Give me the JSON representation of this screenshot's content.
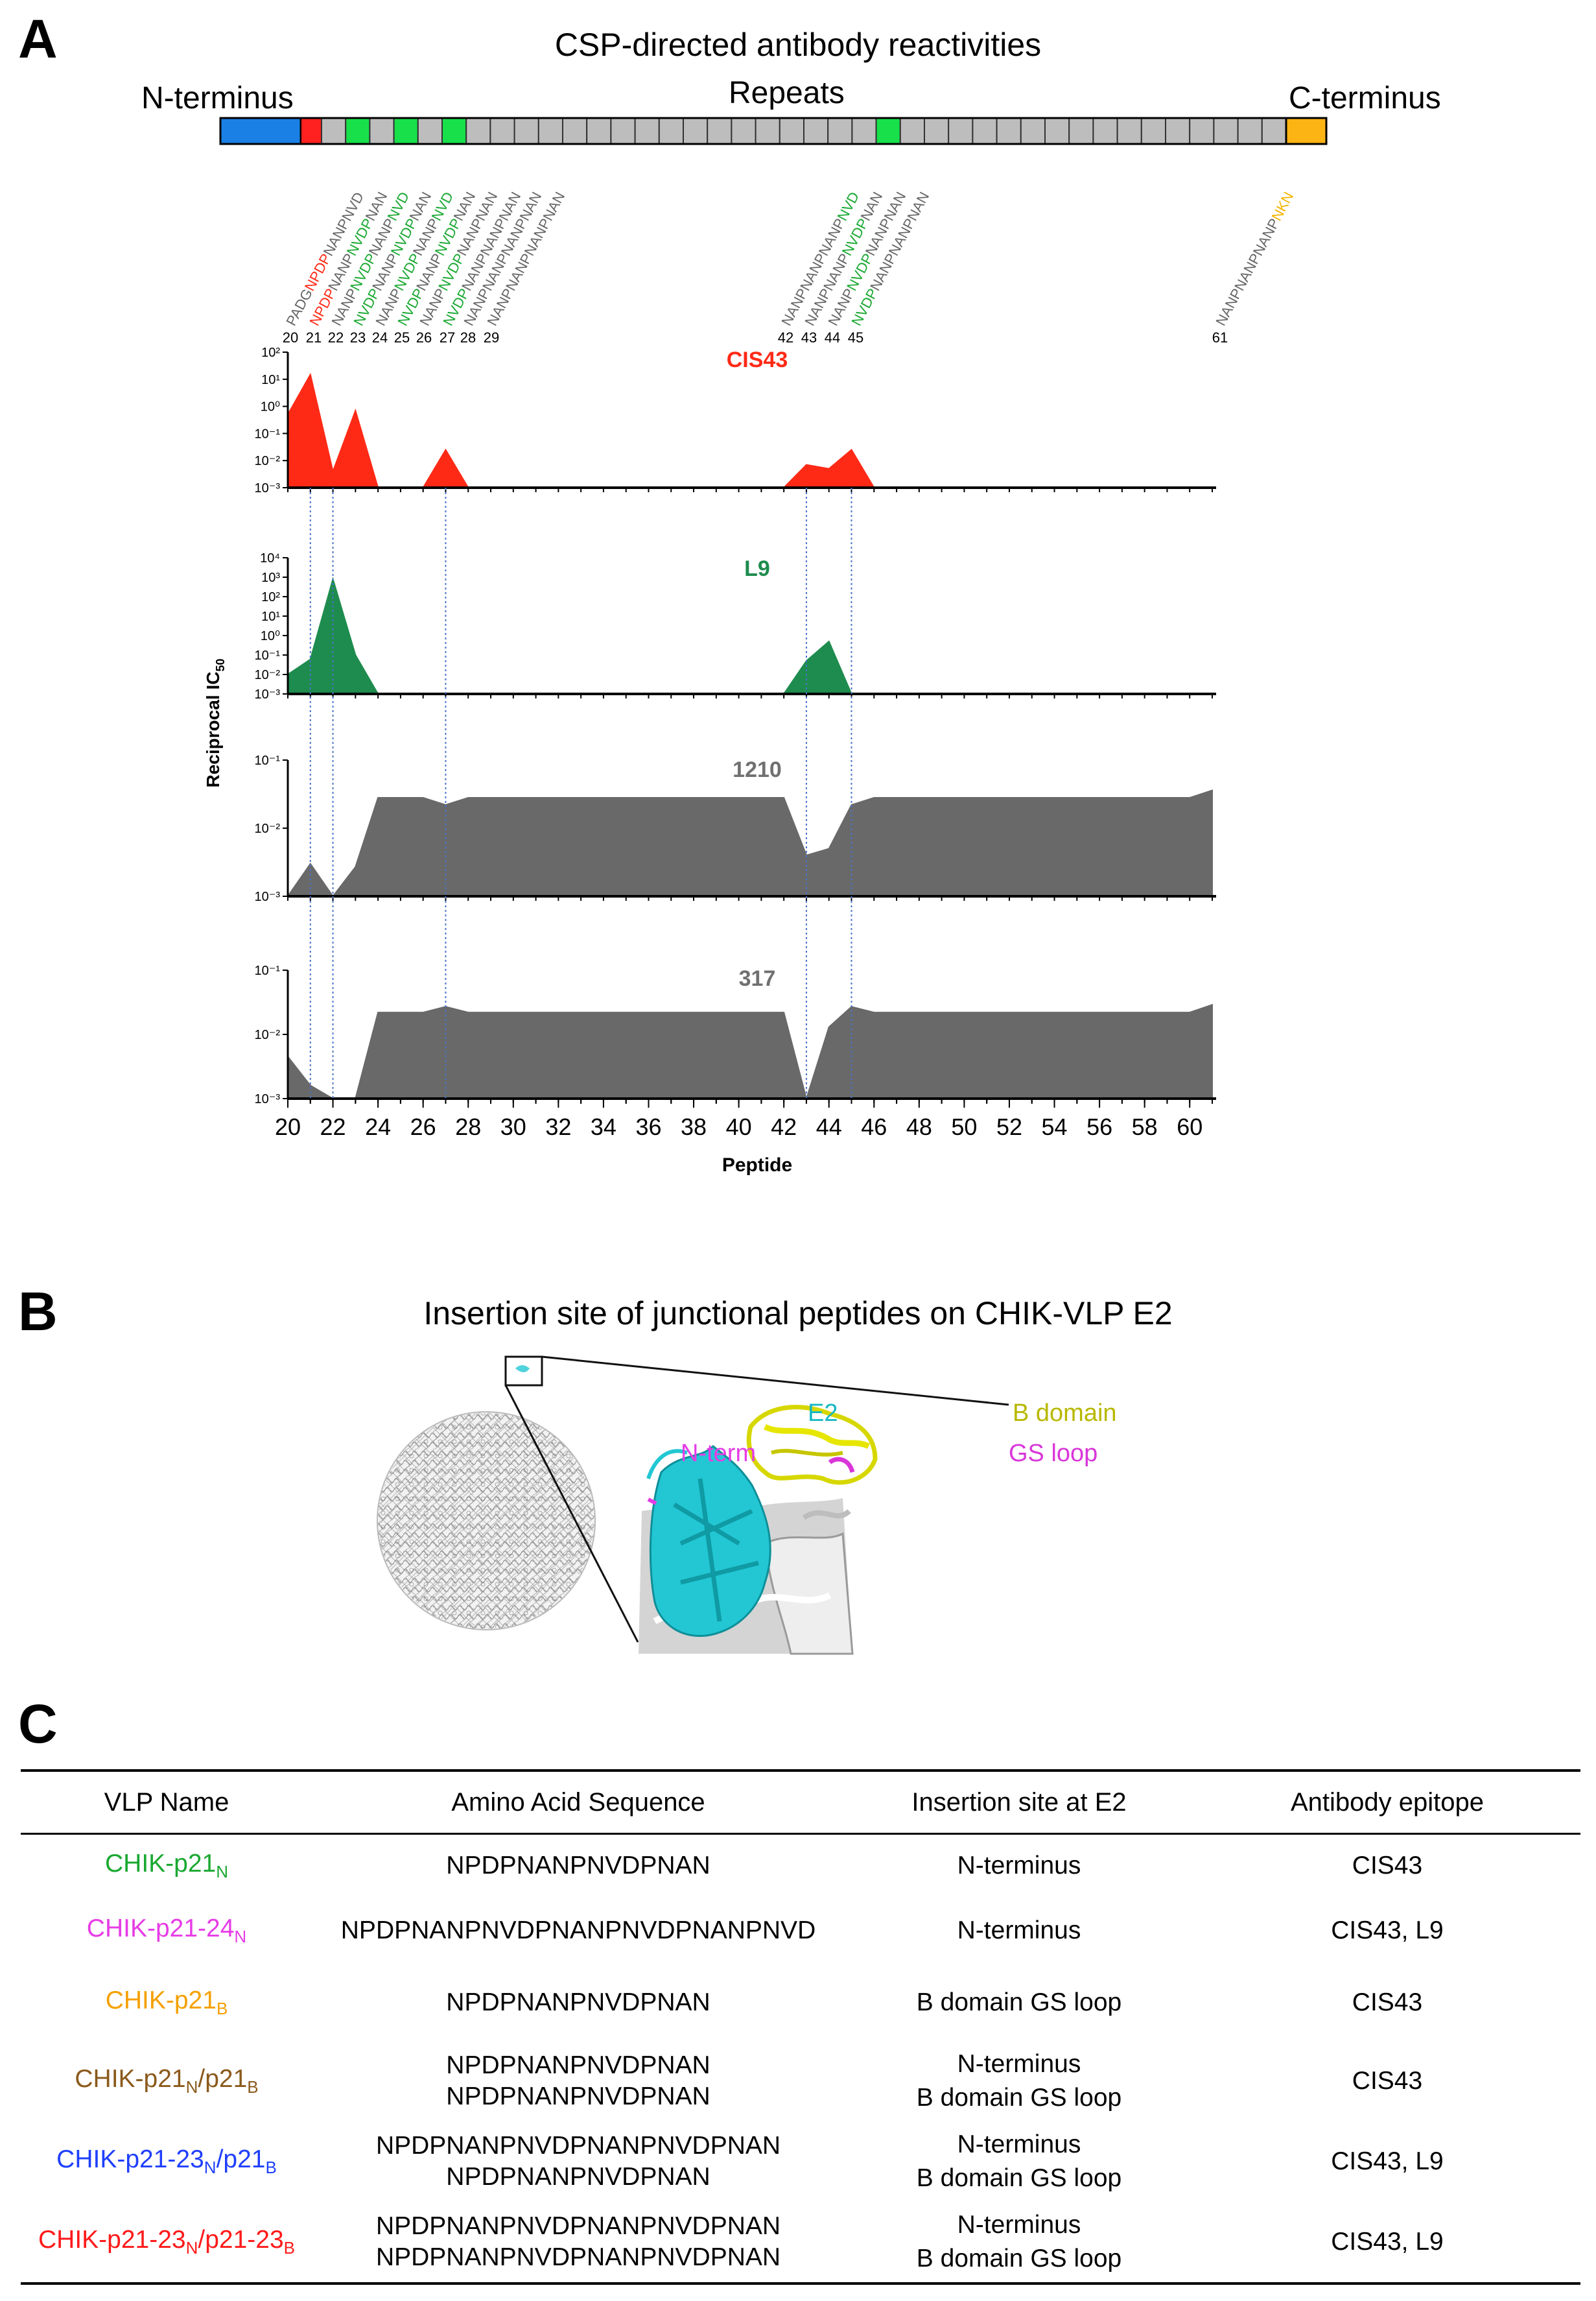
{
  "panelA": {
    "letter": "A",
    "title": "CSP-directed antibody reactivities",
    "n_terminus": "N-terminus",
    "repeats": "Repeats",
    "c_terminus": "C-terminus",
    "peptide_numbers": [
      "20",
      "21",
      "22",
      "23",
      "24",
      "25",
      "26",
      "27",
      "28",
      "29",
      "42",
      "43",
      "44",
      "45",
      "61"
    ],
    "peptides": [
      {
        "num": "20",
        "segments": [
          {
            "t": "PADG",
            "c": "gray"
          },
          {
            "t": "NPDP",
            "c": "red"
          },
          {
            "t": "NANPNVD",
            "c": "gray"
          }
        ]
      },
      {
        "num": "21",
        "segments": [
          {
            "t": "NPDP",
            "c": "red"
          },
          {
            "t": "NANP",
            "c": "gray"
          },
          {
            "t": "NVDP",
            "c": "green"
          },
          {
            "t": "NAN",
            "c": "gray"
          }
        ]
      },
      {
        "num": "22",
        "segments": [
          {
            "t": "NANP",
            "c": "gray"
          },
          {
            "t": "NVDP",
            "c": "green"
          },
          {
            "t": "NANP",
            "c": "gray"
          },
          {
            "t": "NVD",
            "c": "green"
          }
        ]
      },
      {
        "num": "23",
        "segments": [
          {
            "t": "NVDP",
            "c": "green"
          },
          {
            "t": "NANP",
            "c": "gray"
          },
          {
            "t": "NVDP",
            "c": "green"
          },
          {
            "t": "NAN",
            "c": "gray"
          }
        ]
      },
      {
        "num": "24",
        "segments": [
          {
            "t": "NANP",
            "c": "gray"
          },
          {
            "t": "NVDP",
            "c": "green"
          },
          {
            "t": "NANP",
            "c": "gray"
          },
          {
            "t": "NVD",
            "c": "green"
          }
        ]
      },
      {
        "num": "25",
        "segments": [
          {
            "t": "NVDP",
            "c": "green"
          },
          {
            "t": "NANP",
            "c": "gray"
          },
          {
            "t": "NVDP",
            "c": "green"
          },
          {
            "t": "NAN",
            "c": "gray"
          }
        ]
      },
      {
        "num": "26",
        "segments": [
          {
            "t": "NANP",
            "c": "gray"
          },
          {
            "t": "NVDP",
            "c": "green"
          },
          {
            "t": "NANPNAN",
            "c": "gray"
          }
        ]
      },
      {
        "num": "27",
        "segments": [
          {
            "t": "NVDP",
            "c": "green"
          },
          {
            "t": "NANPNANPNAN",
            "c": "gray"
          }
        ]
      },
      {
        "num": "28",
        "segments": [
          {
            "t": "NANPNANPNANPNAN",
            "c": "gray"
          }
        ]
      },
      {
        "num": "29",
        "segments": [
          {
            "t": "NANPNANPNANPNAN",
            "c": "gray"
          }
        ]
      },
      {
        "num": "42",
        "segments": [
          {
            "t": "NANPNANPNANP",
            "c": "gray"
          },
          {
            "t": "NVD",
            "c": "green"
          }
        ]
      },
      {
        "num": "43",
        "segments": [
          {
            "t": "NANPNANP",
            "c": "gray"
          },
          {
            "t": "NVDP",
            "c": "green"
          },
          {
            "t": "NAN",
            "c": "gray"
          }
        ]
      },
      {
        "num": "44",
        "segments": [
          {
            "t": "NANP",
            "c": "gray"
          },
          {
            "t": "NVDP",
            "c": "green"
          },
          {
            "t": "NANPNAN",
            "c": "gray"
          }
        ]
      },
      {
        "num": "45",
        "segments": [
          {
            "t": "NVDP",
            "c": "green"
          },
          {
            "t": "NANPNANPNAN",
            "c": "gray"
          }
        ]
      },
      {
        "num": "61",
        "segments": [
          {
            "t": "NANPNANPNANP",
            "c": "gray"
          },
          {
            "t": "NKN",
            "c": "orange"
          }
        ]
      }
    ],
    "colors": {
      "red": "#ff2a16",
      "green": "#1aa832",
      "orange": "#f5b400",
      "gray": "#666666",
      "nterm": "#1a80e6",
      "cterm": "#fbb413",
      "segment_green": "#17e04a",
      "segment_red": "#ff2020",
      "segment_gray": "#bdbdbd",
      "area_red": "#ff2a16",
      "area_green": "#1e8c4e",
      "area_gray": "#696969"
    },
    "y_axis_label": "Reciprocal IC",
    "y_axis_label_sub": "50",
    "x_axis_label": "Peptide",
    "x_ticks": [
      "20",
      "22",
      "24",
      "26",
      "28",
      "30",
      "32",
      "34",
      "36",
      "38",
      "40",
      "42",
      "44",
      "46",
      "48",
      "50",
      "52",
      "54",
      "56",
      "58",
      "60"
    ]
  },
  "chart_data": [
    {
      "type": "area",
      "title": "CIS43",
      "xlabel": "Peptide",
      "ylabel": "Reciprocal IC50",
      "yscale": "log",
      "ylim": [
        0.001,
        100
      ],
      "y_ticks": [
        "10²",
        "10¹",
        "10⁰",
        "10⁻¹",
        "10⁻²",
        "10⁻³"
      ],
      "x": [
        20,
        21,
        22,
        23,
        24,
        25,
        26,
        27,
        28,
        29,
        30,
        31,
        32,
        33,
        34,
        35,
        36,
        37,
        38,
        39,
        40,
        41,
        42,
        43,
        44,
        45,
        46,
        47,
        48,
        49,
        50,
        51,
        52,
        53,
        54,
        55,
        56,
        57,
        58,
        59,
        60,
        61
      ],
      "values": [
        0.5,
        15,
        0.004,
        0.7,
        0.001,
        0.001,
        0.001,
        0.025,
        0.001,
        0.001,
        0.001,
        0.001,
        0.001,
        0.001,
        0.001,
        0.001,
        0.001,
        0.001,
        0.001,
        0.001,
        0.001,
        0.001,
        0.001,
        0.007,
        0.005,
        0.025,
        0.001,
        0.001,
        0.001,
        0.001,
        0.001,
        0.001,
        0.001,
        0.001,
        0.001,
        0.001,
        0.001,
        0.001,
        0.001,
        0.001,
        0.001,
        0.001
      ]
    },
    {
      "type": "area",
      "title": "L9",
      "xlabel": "Peptide",
      "ylabel": "Reciprocal IC50",
      "yscale": "log",
      "ylim": [
        0.001,
        10000
      ],
      "y_ticks": [
        "10⁴",
        "10³",
        "10²",
        "10¹",
        "10⁰",
        "10⁻¹",
        "10⁻²",
        "10⁻³"
      ],
      "x": [
        20,
        21,
        22,
        23,
        24,
        25,
        26,
        27,
        28,
        29,
        30,
        31,
        32,
        33,
        34,
        35,
        36,
        37,
        38,
        39,
        40,
        41,
        42,
        43,
        44,
        45,
        46,
        47,
        48,
        49,
        50,
        51,
        52,
        53,
        54,
        55,
        56,
        57,
        58,
        59,
        60,
        61
      ],
      "values": [
        0.01,
        0.06,
        800,
        0.1,
        0.001,
        0.001,
        0.001,
        0.001,
        0.001,
        0.001,
        0.001,
        0.001,
        0.001,
        0.001,
        0.001,
        0.001,
        0.001,
        0.001,
        0.001,
        0.001,
        0.001,
        0.001,
        0.001,
        0.05,
        0.5,
        0.001,
        0.001,
        0.001,
        0.001,
        0.001,
        0.001,
        0.001,
        0.001,
        0.001,
        0.001,
        0.001,
        0.001,
        0.001,
        0.001,
        0.001,
        0.001,
        0.001
      ]
    },
    {
      "type": "area",
      "title": "1210",
      "xlabel": "Peptide",
      "ylabel": "Reciprocal IC50",
      "yscale": "log",
      "ylim": [
        0.001,
        0.1
      ],
      "y_ticks": [
        "10⁻¹",
        "10⁻²",
        "10⁻³"
      ],
      "x": [
        20,
        21,
        22,
        23,
        24,
        25,
        26,
        27,
        28,
        29,
        30,
        31,
        32,
        33,
        34,
        35,
        36,
        37,
        38,
        39,
        40,
        41,
        42,
        43,
        44,
        45,
        46,
        47,
        48,
        49,
        50,
        51,
        52,
        53,
        54,
        55,
        56,
        57,
        58,
        59,
        60,
        61
      ],
      "values": [
        0.001,
        0.003,
        0.001,
        0.0027,
        0.028,
        0.028,
        0.028,
        0.022,
        0.028,
        0.028,
        0.028,
        0.028,
        0.028,
        0.028,
        0.028,
        0.028,
        0.028,
        0.028,
        0.028,
        0.028,
        0.028,
        0.028,
        0.028,
        0.004,
        0.005,
        0.022,
        0.028,
        0.028,
        0.028,
        0.028,
        0.028,
        0.028,
        0.028,
        0.028,
        0.028,
        0.028,
        0.028,
        0.028,
        0.028,
        0.028,
        0.028,
        0.036
      ]
    },
    {
      "type": "area",
      "title": "317",
      "xlabel": "Peptide",
      "ylabel": "Reciprocal IC50",
      "yscale": "log",
      "ylim": [
        0.001,
        0.1
      ],
      "y_ticks": [
        "10⁻¹",
        "10⁻²",
        "10⁻³"
      ],
      "x": [
        20,
        21,
        22,
        23,
        24,
        25,
        26,
        27,
        28,
        29,
        30,
        31,
        32,
        33,
        34,
        35,
        36,
        37,
        38,
        39,
        40,
        41,
        42,
        43,
        44,
        45,
        46,
        47,
        48,
        49,
        50,
        51,
        52,
        53,
        54,
        55,
        56,
        57,
        58,
        59,
        60,
        61
      ],
      "values": [
        0.0045,
        0.0016,
        0.001,
        0.001,
        0.022,
        0.022,
        0.022,
        0.027,
        0.022,
        0.022,
        0.022,
        0.022,
        0.022,
        0.022,
        0.022,
        0.022,
        0.022,
        0.022,
        0.022,
        0.022,
        0.022,
        0.022,
        0.022,
        0.001,
        0.013,
        0.027,
        0.022,
        0.022,
        0.022,
        0.022,
        0.022,
        0.022,
        0.022,
        0.022,
        0.022,
        0.022,
        0.022,
        0.022,
        0.022,
        0.022,
        0.022,
        0.029
      ]
    }
  ],
  "panelB": {
    "letter": "B",
    "title": "Insertion site of junctional peptides on CHIK-VLP E2",
    "labels": {
      "e2": "E2",
      "b_domain": "B domain",
      "n_term": "N-term",
      "gs_loop": "GS loop"
    },
    "colors": {
      "e2": "#17b8c4",
      "b_domain": "#b8b800",
      "n_term": "#e63ce6",
      "gs_loop": "#d936d9"
    }
  },
  "panelC": {
    "letter": "C",
    "headers": [
      "VLP Name",
      "Amino Acid Sequence",
      "Insertion site at E2",
      "Antibody epitope"
    ],
    "rows": [
      {
        "name": "CHIK-p21",
        "sub": "N",
        "name2": "",
        "sub2": "",
        "color": "#1aa832",
        "seq": [
          "NPDPNANPNVDPNAN"
        ],
        "site": [
          "N-terminus"
        ],
        "epitope": "CIS43"
      },
      {
        "name": "CHIK-p21-24",
        "sub": "N",
        "name2": "",
        "sub2": "",
        "color": "#e63ce6",
        "seq": [
          "NPDPNANPNVDPNANPNVDPNANPNVD"
        ],
        "site": [
          "N-terminus"
        ],
        "epitope": "CIS43, L9"
      },
      {
        "name": "CHIK-p21",
        "sub": "B",
        "name2": "",
        "sub2": "",
        "color": "#f5a000",
        "seq": [
          "NPDPNANPNVDPNAN"
        ],
        "site": [
          "B domain GS loop"
        ],
        "epitope": "CIS43"
      },
      {
        "name": "CHIK-p21",
        "sub": "N",
        "name2": "/p21",
        "sub2": "B",
        "color": "#8b5a1c",
        "seq": [
          "NPDPNANPNVDPNAN",
          "NPDPNANPNVDPNAN"
        ],
        "site": [
          "N-terminus",
          "B domain GS loop"
        ],
        "epitope": "CIS43"
      },
      {
        "name": "CHIK-p21-23",
        "sub": "N",
        "name2": "/p21",
        "sub2": "B",
        "color": "#1f3fff",
        "seq": [
          "NPDPNANPNVDPNANPNVDPNAN",
          "NPDPNANPNVDPNAN"
        ],
        "site": [
          "N-terminus",
          "B domain GS loop"
        ],
        "epitope": "CIS43, L9"
      },
      {
        "name": "CHIK-p21-23",
        "sub": "N",
        "name2": "/p21-23",
        "sub2": "B",
        "color": "#ff1a1a",
        "seq": [
          "NPDPNANPNVDPNANPNVDPNAN",
          "NPDPNANPNVDPNANPNVDPNAN"
        ],
        "site": [
          "N-terminus",
          "B domain GS loop"
        ],
        "epitope": "CIS43, L9"
      }
    ]
  }
}
